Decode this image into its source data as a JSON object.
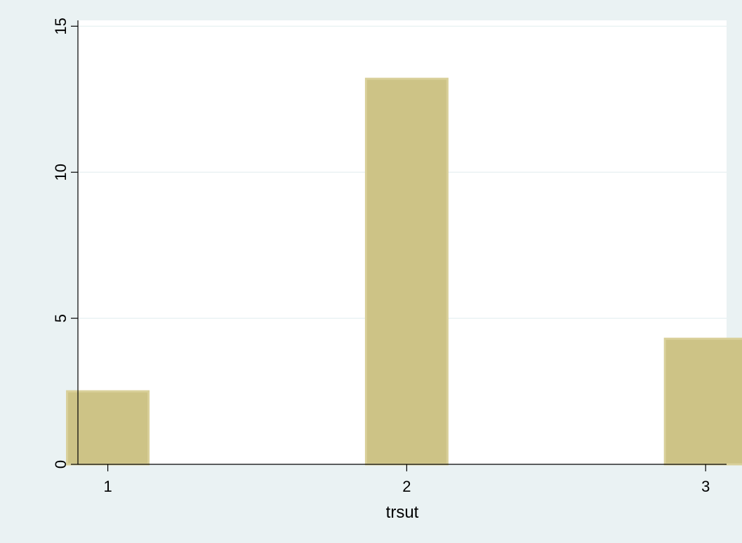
{
  "chart_data": {
    "type": "bar",
    "title": "",
    "xlabel": "trsut",
    "ylabel": "",
    "x": [
      1,
      2,
      3
    ],
    "categories": [
      "1",
      "2",
      "3"
    ],
    "values": [
      2.5,
      13.2,
      4.3
    ],
    "xlim": [
      0.9,
      3.07
    ],
    "ylim": [
      0,
      15.2
    ],
    "yticks": [
      0,
      5,
      10,
      15
    ],
    "ytick_labels": [
      "0",
      "5",
      "10",
      "15"
    ],
    "grid": true,
    "legend": "none"
  },
  "colors": {
    "outer_background": "#eaf2f3",
    "plot_background": "#ffffff",
    "bar_fill": "#cdc386",
    "bar_edge": "#d9d09a",
    "gridline": "#eaf2f3",
    "axis": "#000000"
  }
}
